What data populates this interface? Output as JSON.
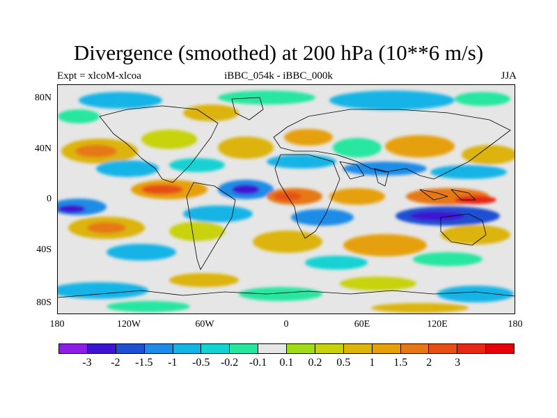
{
  "title": "Divergence (smoothed) at 200 hPa (10**6 m/s)",
  "subtitle_left": "Expt = xlcoM-xlcoa",
  "subtitle_center": "iBBC_054k - iBBC_000k",
  "subtitle_right": "JJA",
  "lat_labels": [
    "80N",
    "40N",
    "0",
    "40S",
    "80S"
  ],
  "lon_labels": [
    "180",
    "120W",
    "60W",
    "0",
    "60E",
    "120E",
    "180"
  ],
  "colorbar": {
    "colors": [
      "#8c1ee6",
      "#3c14d2",
      "#1e50d2",
      "#1e8ce6",
      "#14b4e6",
      "#14d2d2",
      "#28e6a0",
      "#e6e6e6",
      "#a0dc14",
      "#c8d20a",
      "#dcb40a",
      "#e6a00a",
      "#e67814",
      "#e65014",
      "#e62814",
      "#e6000a"
    ],
    "labels": [
      "-3",
      "-2",
      "-1.5",
      "-1",
      "-0.5",
      "-0.2",
      "-0.1",
      "0.1",
      "0.2",
      "0.5",
      "1",
      "1.5",
      "2",
      "3"
    ]
  },
  "map_colors": {
    "neutral": "#e6e6e6",
    "coast": "#000000"
  }
}
